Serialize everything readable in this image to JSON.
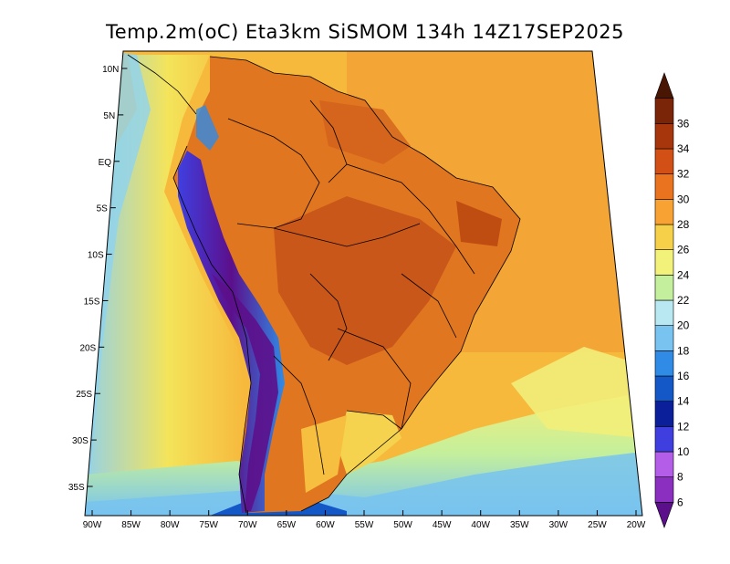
{
  "title": "Temp.2m(oC) Eta3km SiSMOM 134h 14Z17SEP2025",
  "map": {
    "lat_labels": [
      "10N",
      "5N",
      "EQ",
      "5S",
      "10S",
      "15S",
      "20S",
      "25S",
      "30S",
      "35S"
    ],
    "lon_labels": [
      "90W",
      "85W",
      "80W",
      "75W",
      "70W",
      "65W",
      "60W",
      "55W",
      "50W",
      "45W",
      "40W",
      "35W",
      "30W",
      "25W",
      "20W"
    ],
    "lon_range": [
      -90,
      -20
    ],
    "lat_range": [
      -37,
      12
    ],
    "ocean_color": "#f7c540",
    "land_color": "#e07a22"
  },
  "colorbar": {
    "labels": [
      "6",
      "8",
      "10",
      "12",
      "14",
      "16",
      "18",
      "20",
      "22",
      "24",
      "26",
      "28",
      "30",
      "32",
      "34",
      "36"
    ],
    "colors": [
      "#5c0f8b",
      "#8a2fc0",
      "#b45de8",
      "#3f3fe0",
      "#0c1f9a",
      "#1458c8",
      "#2f8be6",
      "#78c3f0",
      "#b9e7f2",
      "#c4ef9c",
      "#f2f27a",
      "#f7d04a",
      "#f7a233",
      "#e9731f",
      "#d24f16",
      "#a8360c",
      "#7a2408",
      "#4a1604"
    ]
  }
}
